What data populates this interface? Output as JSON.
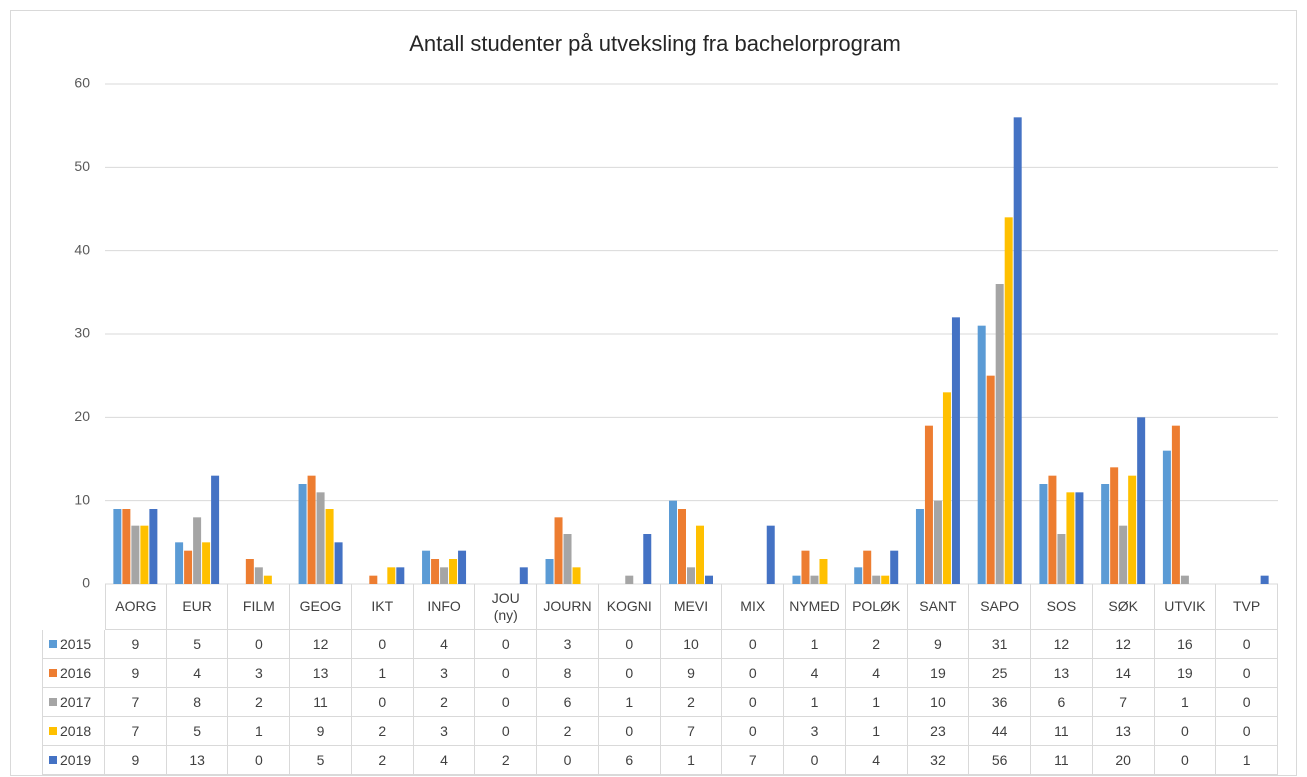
{
  "chart_data": {
    "type": "bar",
    "title": "Antall studenter på utveksling fra bachelorprogram",
    "categories": [
      "AORG",
      "EUR",
      "FILM",
      "GEOG",
      "IKT",
      "INFO",
      "JOU (ny)",
      "JOURN",
      "KOGNI",
      "MEVI",
      "MIX",
      "NYMED",
      "POLØK",
      "SANT",
      "SAPO",
      "SOS",
      "SØK",
      "UTVIK",
      "TVP"
    ],
    "series": [
      {
        "name": "2015",
        "color": "#5b9bd5",
        "values": [
          9,
          5,
          0,
          12,
          0,
          4,
          0,
          3,
          0,
          10,
          0,
          1,
          2,
          9,
          31,
          12,
          12,
          16,
          0
        ]
      },
      {
        "name": "2016",
        "color": "#ed7d31",
        "values": [
          9,
          4,
          3,
          13,
          1,
          3,
          0,
          8,
          0,
          9,
          0,
          4,
          4,
          19,
          25,
          13,
          14,
          19,
          0
        ]
      },
      {
        "name": "2017",
        "color": "#a5a5a5",
        "values": [
          7,
          8,
          2,
          11,
          0,
          2,
          0,
          6,
          1,
          2,
          0,
          1,
          1,
          10,
          36,
          6,
          7,
          1,
          0
        ]
      },
      {
        "name": "2018",
        "color": "#ffc000",
        "values": [
          7,
          5,
          1,
          9,
          2,
          3,
          0,
          2,
          0,
          7,
          0,
          3,
          1,
          23,
          44,
          11,
          13,
          0,
          0
        ]
      },
      {
        "name": "2019",
        "color": "#4472c4",
        "values": [
          9,
          13,
          0,
          5,
          2,
          4,
          2,
          0,
          6,
          1,
          7,
          0,
          4,
          32,
          56,
          11,
          20,
          0,
          1
        ]
      }
    ],
    "ylim": [
      0,
      60
    ],
    "yticks": [
      0,
      10,
      20,
      30,
      40,
      50,
      60
    ],
    "grid": true,
    "data_table": true
  }
}
